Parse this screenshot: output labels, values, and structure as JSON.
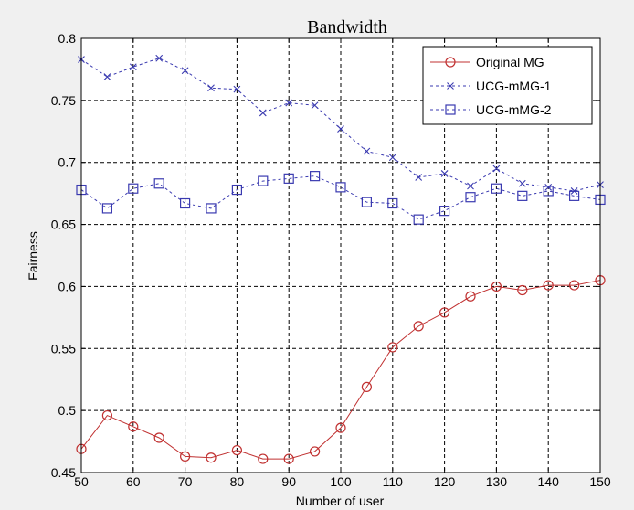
{
  "chart_data": {
    "type": "line",
    "title": "Bandwidth",
    "xlabel": "Number of user",
    "ylabel": "Fairness",
    "xlim": [
      50,
      150
    ],
    "ylim": [
      0.45,
      0.8
    ],
    "xticks": [
      "50",
      "60",
      "70",
      "80",
      "90",
      "100",
      "110",
      "120",
      "130",
      "140",
      "150"
    ],
    "yticks": [
      "0.45",
      "0.5",
      "0.55",
      "0.6",
      "0.65",
      "0.7",
      "0.75",
      "0.8"
    ],
    "grid": true,
    "legend_position": "top-right",
    "x": [
      50,
      55,
      60,
      65,
      70,
      75,
      80,
      85,
      90,
      95,
      100,
      105,
      110,
      115,
      120,
      125,
      130,
      135,
      140,
      145,
      150
    ],
    "series": [
      {
        "name": "Original MG",
        "color": "#c03030",
        "marker": "circle",
        "line_style": "solid",
        "values": [
          0.469,
          0.496,
          0.487,
          0.478,
          0.463,
          0.462,
          0.468,
          0.461,
          0.461,
          0.467,
          0.486,
          0.519,
          0.551,
          0.568,
          0.579,
          0.592,
          0.6,
          0.597,
          0.601,
          0.601,
          0.605
        ]
      },
      {
        "name": "UCG-mMG-1",
        "color": "#3a3ab0",
        "marker": "x",
        "line_style": "dashed",
        "values": [
          0.783,
          0.769,
          0.777,
          0.784,
          0.774,
          0.76,
          0.759,
          0.74,
          0.748,
          0.746,
          0.727,
          0.709,
          0.704,
          0.688,
          0.691,
          0.681,
          0.695,
          0.683,
          0.68,
          0.677,
          0.682
        ]
      },
      {
        "name": "UCG-mMG-2",
        "color": "#3a3ab0",
        "marker": "square",
        "line_style": "dashed",
        "values": [
          0.678,
          0.663,
          0.679,
          0.683,
          0.667,
          0.663,
          0.678,
          0.685,
          0.687,
          0.689,
          0.68,
          0.668,
          0.667,
          0.654,
          0.661,
          0.672,
          0.679,
          0.673,
          0.677,
          0.673,
          0.67
        ]
      }
    ]
  }
}
